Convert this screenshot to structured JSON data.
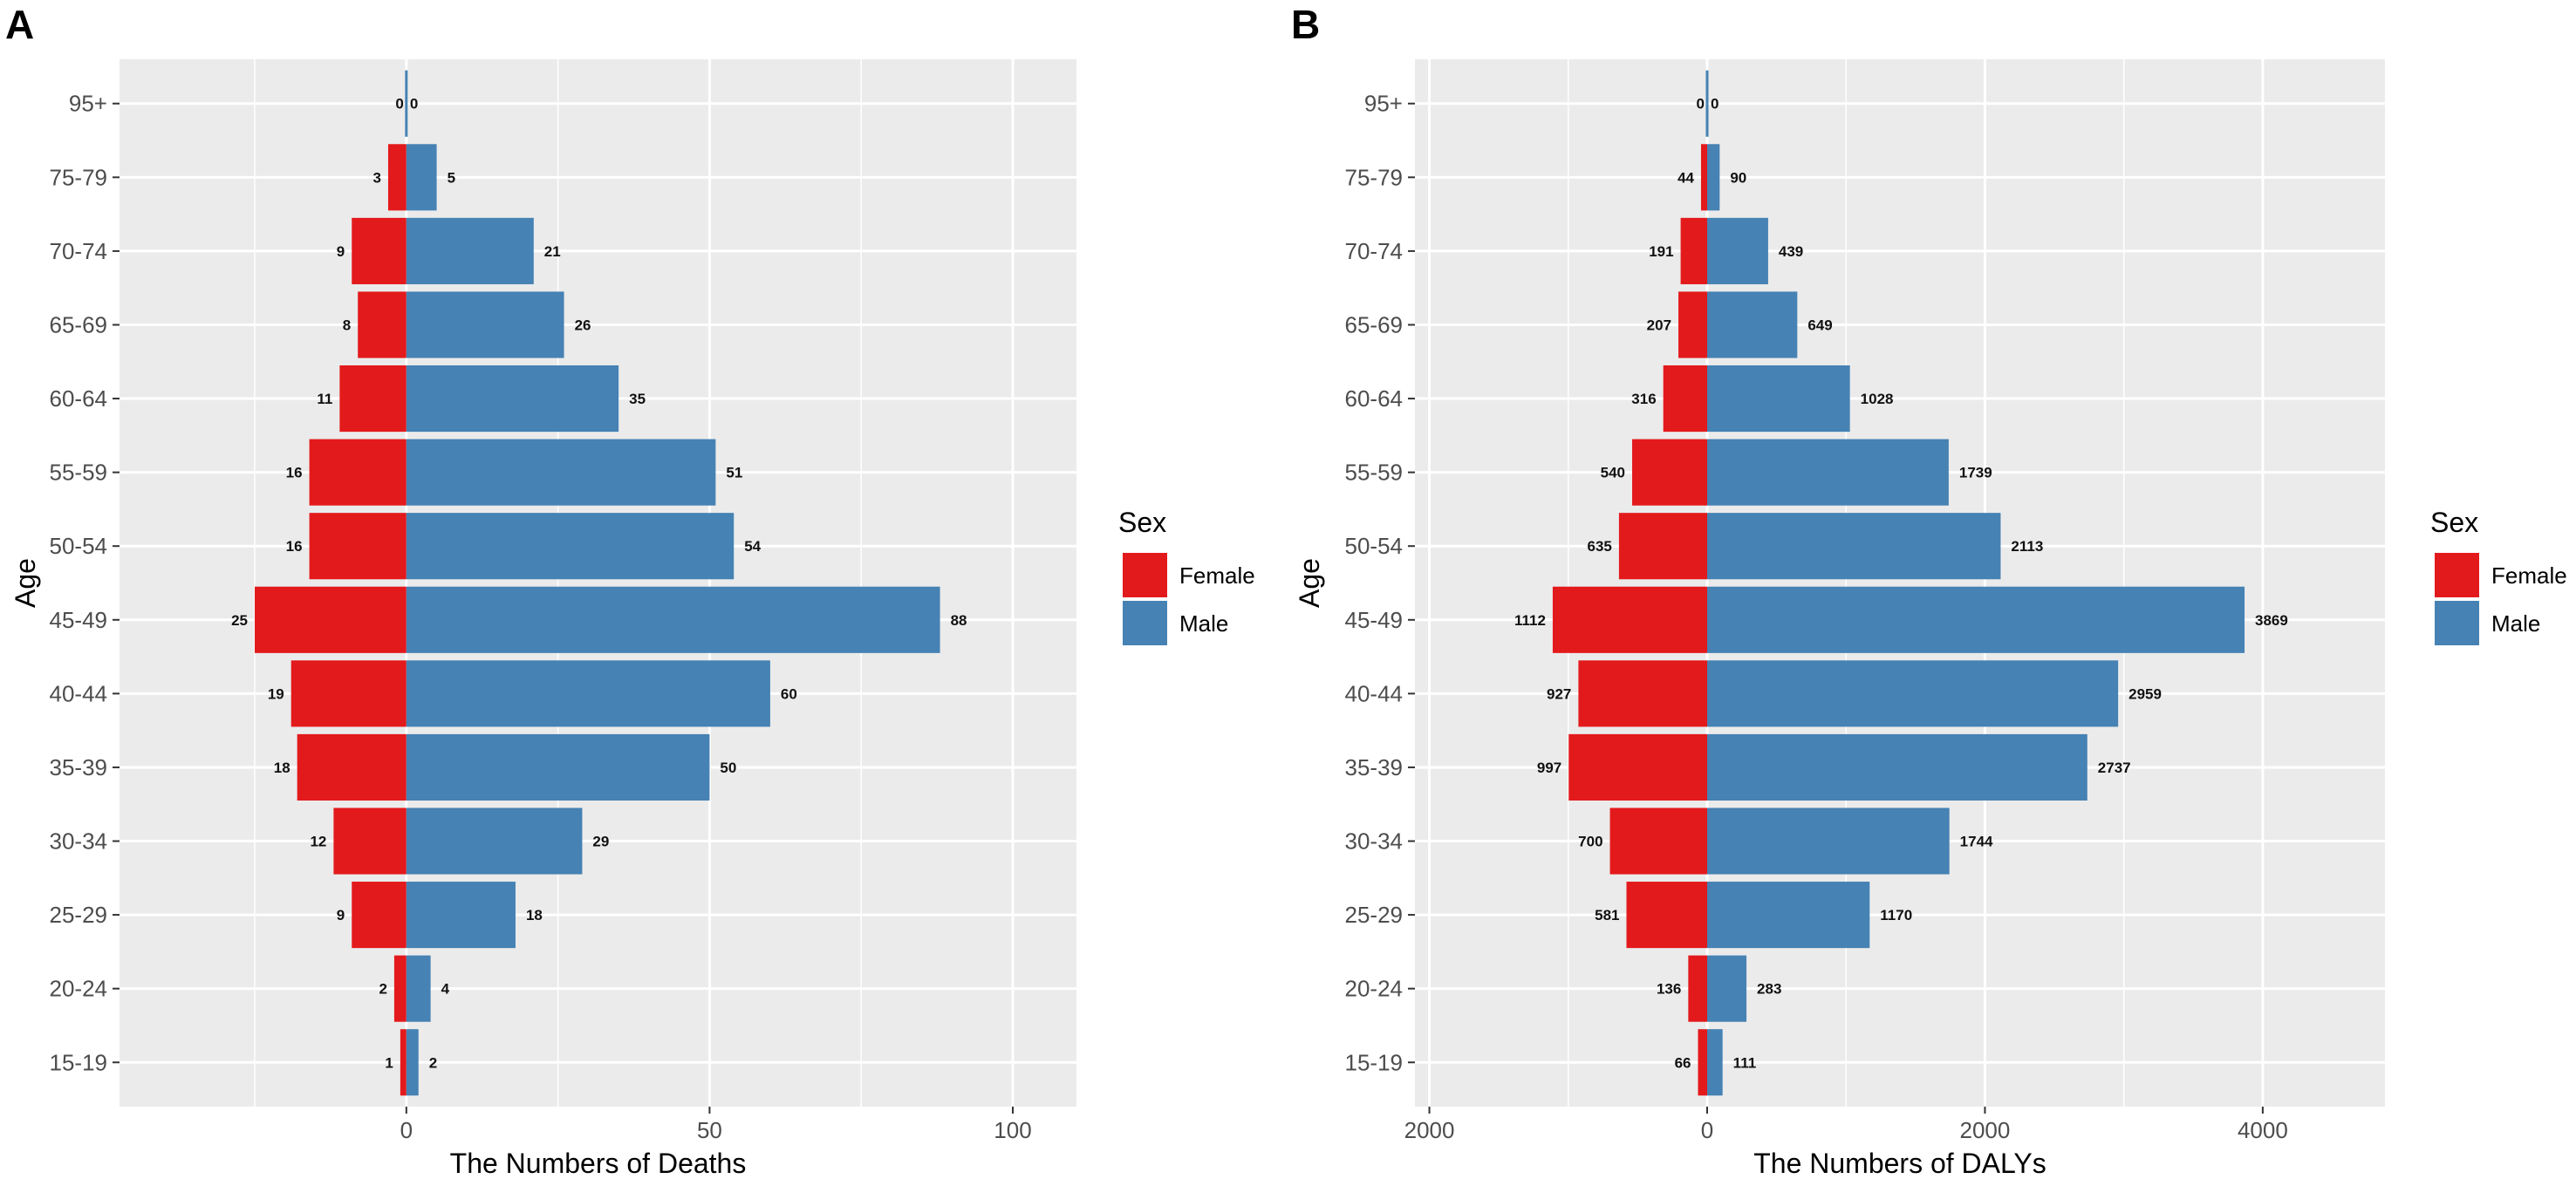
{
  "chart_data": [
    {
      "panel_label": "A",
      "type": "bar",
      "orientation": "horizontal-pyramid",
      "categories": [
        "15-19",
        "20-24",
        "25-29",
        "30-34",
        "35-39",
        "40-44",
        "45-49",
        "50-54",
        "55-59",
        "60-64",
        "65-69",
        "70-74",
        "75-79",
        "95+"
      ],
      "series": [
        {
          "name": "Female",
          "color": "#e31a1c",
          "values": [
            1,
            2,
            9,
            12,
            18,
            19,
            25,
            16,
            16,
            11,
            8,
            9,
            3,
            0
          ]
        },
        {
          "name": "Male",
          "color": "#4682b4",
          "values": [
            2,
            4,
            18,
            29,
            50,
            60,
            88,
            54,
            51,
            35,
            26,
            21,
            5,
            0
          ]
        }
      ],
      "xlabel": "The Numbers of Deaths",
      "ylabel": "Age",
      "xlim": [
        -47.3,
        110.5
      ],
      "xticks": [
        0,
        50,
        100
      ],
      "xtick_labels": [
        "0",
        "50",
        "100"
      ],
      "grid": true,
      "legend": {
        "title": "Sex",
        "placement": "right",
        "entries": [
          "Female",
          "Male"
        ]
      }
    },
    {
      "panel_label": "B",
      "type": "bar",
      "orientation": "horizontal-pyramid",
      "categories": [
        "15-19",
        "20-24",
        "25-29",
        "30-34",
        "35-39",
        "40-44",
        "45-49",
        "50-54",
        "55-59",
        "60-64",
        "65-69",
        "70-74",
        "75-79",
        "95+"
      ],
      "series": [
        {
          "name": "Female",
          "color": "#e31a1c",
          "values": [
            66,
            136,
            581,
            700,
            997,
            927,
            1112,
            635,
            540,
            316,
            207,
            191,
            44,
            0
          ]
        },
        {
          "name": "Male",
          "color": "#4682b4",
          "values": [
            111,
            283,
            1170,
            1744,
            2737,
            2959,
            3869,
            2113,
            1739,
            1028,
            649,
            439,
            90,
            0
          ]
        }
      ],
      "xlabel": "The Numbers of DALYs",
      "ylabel": "Age",
      "xlim": [
        -2104,
        4880
      ],
      "xticks": [
        -2000,
        0,
        2000,
        4000
      ],
      "xtick_labels": [
        "2000",
        "0",
        "2000",
        "4000"
      ],
      "grid": true,
      "legend": {
        "title": "Sex",
        "placement": "right",
        "entries": [
          "Female",
          "Male"
        ]
      }
    }
  ]
}
